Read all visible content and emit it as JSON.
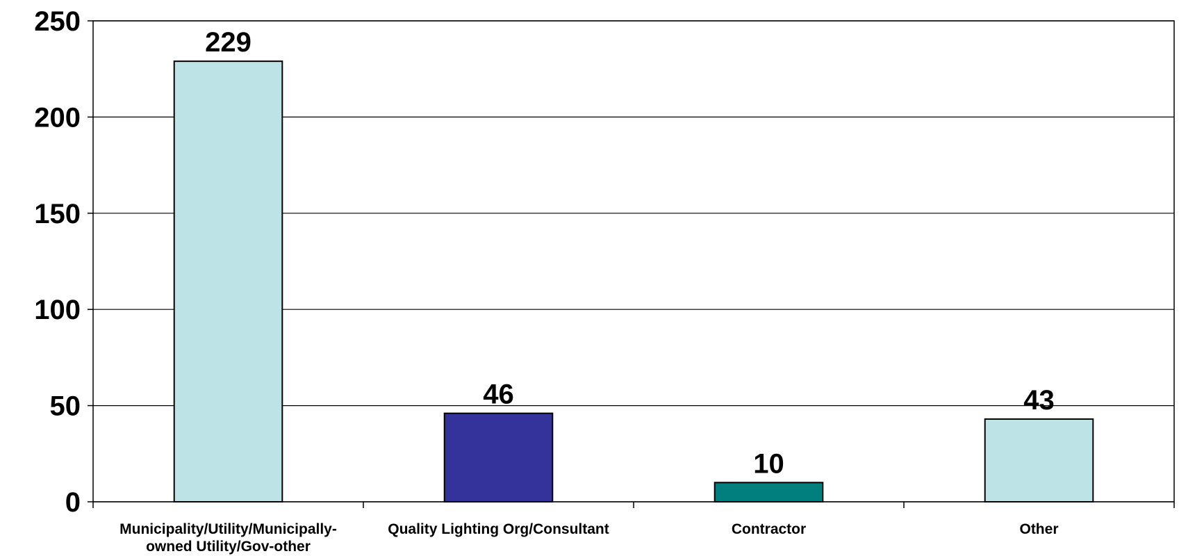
{
  "chart_data": {
    "type": "bar",
    "categories": [
      [
        "Municipality/Utility/Municipally-",
        "owned Utility/Gov-other"
      ],
      [
        "Quality Lighting Org/Consultant"
      ],
      [
        "Contractor"
      ],
      [
        "Other"
      ]
    ],
    "values": [
      229,
      46,
      10,
      43
    ],
    "bar_colors": [
      "#bde3e6",
      "#34339b",
      "#007f7f",
      "#bde3e6"
    ],
    "ylim": [
      0,
      250
    ],
    "yticks": [
      0,
      50,
      100,
      150,
      200,
      250
    ],
    "grid": true,
    "legend": "none"
  }
}
